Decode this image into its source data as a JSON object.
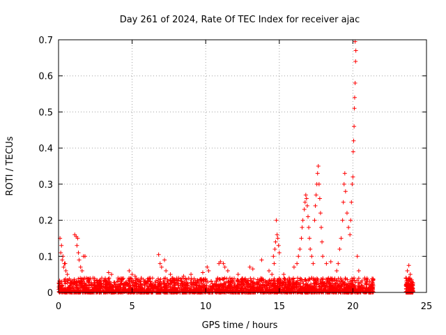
{
  "chart_data": {
    "type": "scatter",
    "title": "Day 261 of 2024, Rate Of TEC Index for receiver ajac",
    "xlabel": "GPS time / hours",
    "ylabel": "ROTI / TECUs",
    "xlim": [
      0,
      25
    ],
    "ylim": [
      0,
      0.7
    ],
    "xticks": [
      0,
      5,
      10,
      15,
      20,
      25
    ],
    "xtick_labels": [
      "0",
      "5",
      "10",
      "15",
      "20",
      "25"
    ],
    "yticks": [
      0,
      0.1,
      0.2,
      0.3,
      0.4,
      0.5,
      0.6,
      0.7
    ],
    "ytick_labels": [
      "0",
      "0.1",
      "0.2",
      "0.3",
      "0.4",
      "0.5",
      "0.6",
      "0.7"
    ],
    "grid": true,
    "marker": "plus",
    "color": "#ff0000",
    "series": [
      {
        "name": "ROTI",
        "points": [
          [
            0.1,
            0.15
          ],
          [
            0.2,
            0.13
          ],
          [
            0.3,
            0.1
          ],
          [
            0.4,
            0.08
          ],
          [
            0.5,
            0.06
          ],
          [
            0.25,
            0.09
          ],
          [
            0.35,
            0.07
          ],
          [
            0.6,
            0.05
          ],
          [
            0.15,
            0.11
          ],
          [
            0.45,
            0.08
          ],
          [
            1.1,
            0.16
          ],
          [
            1.2,
            0.155
          ],
          [
            1.3,
            0.15
          ],
          [
            1.25,
            0.13
          ],
          [
            1.35,
            0.11
          ],
          [
            1.4,
            0.09
          ],
          [
            1.5,
            0.07
          ],
          [
            1.7,
            0.1
          ],
          [
            1.8,
            0.1
          ],
          [
            1.6,
            0.06
          ],
          [
            3.4,
            0.055
          ],
          [
            3.6,
            0.05
          ],
          [
            4.8,
            0.06
          ],
          [
            5.0,
            0.05
          ],
          [
            5.2,
            0.045
          ],
          [
            6.8,
            0.105
          ],
          [
            6.9,
            0.08
          ],
          [
            7.0,
            0.07
          ],
          [
            7.2,
            0.09
          ],
          [
            7.3,
            0.06
          ],
          [
            7.6,
            0.05
          ],
          [
            8.5,
            0.045
          ],
          [
            9.0,
            0.05
          ],
          [
            9.8,
            0.055
          ],
          [
            10.1,
            0.07
          ],
          [
            10.2,
            0.06
          ],
          [
            10.9,
            0.08
          ],
          [
            11.0,
            0.085
          ],
          [
            11.2,
            0.08
          ],
          [
            11.3,
            0.07
          ],
          [
            11.5,
            0.06
          ],
          [
            12.2,
            0.05
          ],
          [
            13.0,
            0.07
          ],
          [
            13.2,
            0.065
          ],
          [
            13.8,
            0.09
          ],
          [
            14.3,
            0.06
          ],
          [
            14.5,
            0.05
          ],
          [
            14.8,
            0.2
          ],
          [
            14.85,
            0.16
          ],
          [
            14.9,
            0.15
          ],
          [
            14.75,
            0.14
          ],
          [
            14.7,
            0.12
          ],
          [
            14.6,
            0.1
          ],
          [
            14.65,
            0.08
          ],
          [
            14.95,
            0.13
          ],
          [
            15.0,
            0.11
          ],
          [
            15.3,
            0.05
          ],
          [
            16.0,
            0.07
          ],
          [
            16.2,
            0.08
          ],
          [
            16.3,
            0.1
          ],
          [
            16.4,
            0.12
          ],
          [
            16.5,
            0.15
          ],
          [
            16.55,
            0.18
          ],
          [
            16.6,
            0.2
          ],
          [
            16.7,
            0.23
          ],
          [
            16.75,
            0.25
          ],
          [
            16.8,
            0.27
          ],
          [
            16.85,
            0.26
          ],
          [
            16.9,
            0.24
          ],
          [
            16.95,
            0.21
          ],
          [
            17.0,
            0.18
          ],
          [
            17.05,
            0.15
          ],
          [
            17.1,
            0.12
          ],
          [
            17.2,
            0.1
          ],
          [
            17.3,
            0.08
          ],
          [
            17.4,
            0.2
          ],
          [
            17.45,
            0.24
          ],
          [
            17.5,
            0.27
          ],
          [
            17.55,
            0.3
          ],
          [
            17.6,
            0.33
          ],
          [
            17.65,
            0.35
          ],
          [
            17.7,
            0.3
          ],
          [
            17.75,
            0.26
          ],
          [
            17.8,
            0.22
          ],
          [
            17.85,
            0.18
          ],
          [
            17.9,
            0.14
          ],
          [
            17.95,
            0.1
          ],
          [
            18.2,
            0.08
          ],
          [
            18.5,
            0.085
          ],
          [
            18.9,
            0.06
          ],
          [
            19.0,
            0.08
          ],
          [
            19.1,
            0.12
          ],
          [
            19.2,
            0.15
          ],
          [
            19.3,
            0.2
          ],
          [
            19.35,
            0.25
          ],
          [
            19.4,
            0.3
          ],
          [
            19.45,
            0.33
          ],
          [
            19.5,
            0.28
          ],
          [
            19.6,
            0.22
          ],
          [
            19.7,
            0.18
          ],
          [
            19.8,
            0.16
          ],
          [
            19.85,
            0.2
          ],
          [
            19.9,
            0.25
          ],
          [
            19.95,
            0.3
          ],
          [
            20.0,
            0.32
          ],
          [
            20.02,
            0.39
          ],
          [
            20.05,
            0.42
          ],
          [
            20.08,
            0.46
          ],
          [
            20.1,
            0.51
          ],
          [
            20.12,
            0.54
          ],
          [
            20.15,
            0.58
          ],
          [
            20.18,
            0.64
          ],
          [
            20.2,
            0.67
          ],
          [
            20.15,
            0.695
          ],
          [
            20.3,
            0.1
          ],
          [
            20.4,
            0.06
          ],
          [
            20.8,
            0.04
          ],
          [
            21.0,
            0.035
          ],
          [
            21.3,
            0.02
          ],
          [
            23.6,
            0.04
          ],
          [
            23.7,
            0.06
          ],
          [
            23.8,
            0.075
          ],
          [
            23.9,
            0.05
          ],
          [
            24.0,
            0.03
          ],
          [
            24.05,
            0.02
          ]
        ]
      }
    ]
  }
}
